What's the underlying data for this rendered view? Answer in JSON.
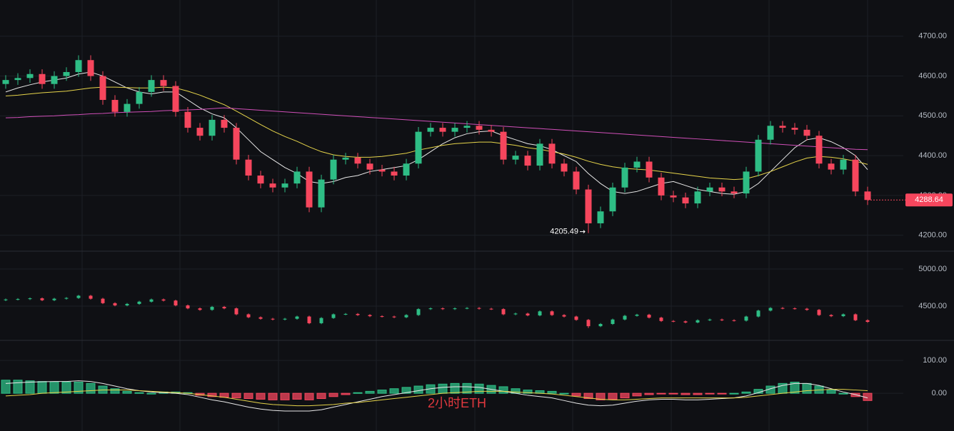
{
  "chart_data": [
    {
      "type": "candlestick",
      "up_color": "#2ebd85",
      "down_color": "#f6465d",
      "open": [
        4580,
        4590,
        4595,
        4605,
        4580,
        4600,
        4610,
        4640,
        4600,
        4540,
        4510,
        4530,
        4560,
        4590,
        4575,
        4510,
        4470,
        4450,
        4490,
        4470,
        4390,
        4350,
        4330,
        4320,
        4330,
        4360,
        4270,
        4340,
        4390,
        4395,
        4380,
        4365,
        4360,
        4350,
        4380,
        4460,
        4470,
        4460,
        4470,
        4475,
        4465,
        4460,
        4390,
        4400,
        4375,
        4430,
        4380,
        4360,
        4315,
        4230,
        4260,
        4320,
        4370,
        4385,
        4345,
        4300,
        4295,
        4280,
        4310,
        4320,
        4310,
        4305,
        4360,
        4440,
        4475,
        4470,
        4465,
        4450,
        4380,
        4365,
        4390,
        4310
      ],
      "high": [
        4602,
        4607,
        4617,
        4617,
        4612,
        4622,
        4652,
        4652,
        4612,
        4552,
        4542,
        4572,
        4602,
        4602,
        4587,
        4522,
        4482,
        4502,
        4502,
        4482,
        4402,
        4362,
        4342,
        4342,
        4372,
        4372,
        4352,
        4402,
        4407,
        4407,
        4392,
        4377,
        4372,
        4392,
        4472,
        4482,
        4482,
        4482,
        4487,
        4487,
        4477,
        4472,
        4412,
        4412,
        4442,
        4442,
        4392,
        4372,
        4327,
        4272,
        4332,
        4382,
        4397,
        4397,
        4357,
        4312,
        4307,
        4322,
        4332,
        4332,
        4322,
        4372,
        4452,
        4487,
        4487,
        4482,
        4477,
        4462,
        4392,
        4402,
        4402,
        4322
      ],
      "low": [
        4568,
        4578,
        4583,
        4568,
        4568,
        4588,
        4598,
        4588,
        4528,
        4498,
        4498,
        4518,
        4548,
        4563,
        4498,
        4458,
        4438,
        4438,
        4458,
        4378,
        4338,
        4318,
        4308,
        4308,
        4318,
        4258,
        4258,
        4328,
        4378,
        4368,
        4353,
        4348,
        4338,
        4338,
        4368,
        4448,
        4448,
        4448,
        4458,
        4453,
        4448,
        4378,
        4378,
        4363,
        4363,
        4368,
        4348,
        4303,
        4205.49,
        4218,
        4248,
        4308,
        4358,
        4333,
        4288,
        4283,
        4268,
        4268,
        4298,
        4298,
        4293,
        4293,
        4348,
        4428,
        4458,
        4453,
        4438,
        4368,
        4353,
        4353,
        4298,
        4276
      ],
      "close": [
        4590,
        4595,
        4605,
        4580,
        4600,
        4610,
        4640,
        4600,
        4540,
        4510,
        4530,
        4560,
        4590,
        4575,
        4510,
        4470,
        4450,
        4490,
        4470,
        4390,
        4350,
        4330,
        4320,
        4330,
        4360,
        4270,
        4340,
        4390,
        4395,
        4380,
        4365,
        4360,
        4350,
        4380,
        4460,
        4470,
        4460,
        4470,
        4475,
        4465,
        4460,
        4390,
        4400,
        4375,
        4430,
        4380,
        4360,
        4315,
        4230,
        4260,
        4320,
        4370,
        4385,
        4345,
        4300,
        4295,
        4280,
        4310,
        4320,
        4310,
        4305,
        4360,
        4440,
        4475,
        4470,
        4465,
        4450,
        4380,
        4365,
        4390,
        4310,
        4288.64
      ],
      "series": [
        {
          "color": "#e8e8e8",
          "values": [
            4560,
            4570,
            4578,
            4585,
            4590,
            4595,
            4605,
            4610,
            4600,
            4585,
            4570,
            4560,
            4555,
            4560,
            4560,
            4540,
            4520,
            4505,
            4495,
            4470,
            4440,
            4410,
            4390,
            4370,
            4355,
            4335,
            4330,
            4335,
            4345,
            4350,
            4360,
            4365,
            4370,
            4375,
            4390,
            4410,
            4430,
            4445,
            4455,
            4460,
            4462,
            4450,
            4440,
            4430,
            4425,
            4415,
            4400,
            4385,
            4355,
            4330,
            4310,
            4305,
            4310,
            4320,
            4330,
            4335,
            4325,
            4315,
            4310,
            4305,
            4303,
            4310,
            4330,
            4360,
            4390,
            4420,
            4440,
            4445,
            4435,
            4420,
            4400,
            4365
          ]
        },
        {
          "color": "#e6d44a",
          "values": [
            4550,
            4552,
            4555,
            4558,
            4560,
            4562,
            4566,
            4570,
            4572,
            4572,
            4571,
            4570,
            4570,
            4572,
            4570,
            4562,
            4552,
            4540,
            4528,
            4512,
            4495,
            4478,
            4462,
            4448,
            4436,
            4422,
            4410,
            4402,
            4398,
            4396,
            4396,
            4398,
            4402,
            4406,
            4414,
            4420,
            4426,
            4430,
            4432,
            4434,
            4434,
            4430,
            4426,
            4420,
            4416,
            4410,
            4404,
            4396,
            4386,
            4378,
            4372,
            4368,
            4366,
            4364,
            4360,
            4356,
            4352,
            4348,
            4344,
            4342,
            4340,
            4342,
            4350,
            4360,
            4372,
            4384,
            4394,
            4398,
            4396,
            4392,
            4386,
            4378
          ]
        },
        {
          "color": "#d04fb8",
          "values": [
            4495,
            4496,
            4498,
            4499,
            4500,
            4502,
            4503,
            4505,
            4506,
            4508,
            4509,
            4510,
            4511,
            4513,
            4514,
            4515,
            4516,
            4518,
            4520,
            4518,
            4516,
            4514,
            4512,
            4510,
            4508,
            4506,
            4504,
            4502,
            4500,
            4498,
            4496,
            4494,
            4492,
            4490,
            4488,
            4486,
            4484,
            4482,
            4480,
            4478,
            4476,
            4474,
            4472,
            4470,
            4468,
            4466,
            4464,
            4462,
            4460,
            4458,
            4456,
            4454,
            4452,
            4450,
            4448,
            4446,
            4444,
            4442,
            4440,
            4438,
            4436,
            4434,
            4432,
            4430,
            4428,
            4426,
            4424,
            4422,
            4420,
            4418,
            4416,
            4415
          ]
        }
      ],
      "ylim": [
        4160,
        4791
      ],
      "yticks": [
        {
          "value": 4200,
          "label": "4200.00"
        },
        {
          "value": 4300,
          "label": "4300.00"
        },
        {
          "value": 4400,
          "label": "4400.00"
        },
        {
          "value": 4500,
          "label": "4500.00"
        },
        {
          "value": 4600,
          "label": "4600.00"
        },
        {
          "value": 4700,
          "label": "4700.00"
        }
      ],
      "y2lim": [
        4039,
        5240
      ],
      "y2ticks": [
        {
          "value": 4500,
          "label": "4500.00"
        },
        {
          "value": 5000,
          "label": "5000.00"
        }
      ],
      "grid": true
    },
    {
      "type": "macd",
      "watermark": "2小时ETH",
      "values": [
        40,
        40,
        38,
        36,
        35,
        34,
        34,
        30,
        22,
        14,
        6,
        2,
        0,
        4,
        4,
        2,
        -6,
        -10,
        -12,
        -14,
        -16,
        -18,
        -20,
        -20,
        -18,
        -20,
        -16,
        -10,
        -4,
        2,
        6,
        10,
        14,
        18,
        22,
        26,
        28,
        30,
        30,
        28,
        24,
        20,
        14,
        10,
        8,
        6,
        0,
        -8,
        -16,
        -20,
        -18,
        -14,
        -8,
        -4,
        -2,
        -2,
        -4,
        -4,
        -2,
        -2,
        0,
        4,
        12,
        22,
        30,
        34,
        30,
        22,
        10,
        0,
        -10,
        -22
      ],
      "up_color": "#2ebd85",
      "down_color": "#f6465d",
      "series": [
        {
          "color": "#e8e8e8",
          "values": [
            30,
            32,
            34,
            35,
            36,
            36,
            38,
            36,
            30,
            22,
            14,
            8,
            4,
            2,
            0,
            -4,
            -12,
            -20,
            -26,
            -34,
            -42,
            -48,
            -52,
            -54,
            -54,
            -54,
            -50,
            -42,
            -34,
            -26,
            -18,
            -10,
            -4,
            2,
            8,
            14,
            18,
            20,
            20,
            18,
            12,
            6,
            0,
            -6,
            -10,
            -14,
            -22,
            -30,
            -36,
            -38,
            -36,
            -30,
            -24,
            -20,
            -18,
            -18,
            -20,
            -20,
            -18,
            -16,
            -14,
            -8,
            2,
            14,
            24,
            30,
            30,
            24,
            14,
            4,
            -4,
            -14
          ]
        },
        {
          "color": "#e6d44a",
          "values": [
            -8,
            -6,
            -4,
            0,
            2,
            4,
            6,
            8,
            10,
            10,
            10,
            8,
            6,
            4,
            2,
            0,
            -4,
            -8,
            -12,
            -18,
            -24,
            -30,
            -34,
            -36,
            -38,
            -38,
            -36,
            -34,
            -30,
            -28,
            -24,
            -20,
            -16,
            -12,
            -8,
            -4,
            0,
            2,
            4,
            6,
            6,
            6,
            4,
            2,
            0,
            -2,
            -6,
            -10,
            -14,
            -18,
            -20,
            -20,
            -18,
            -16,
            -14,
            -14,
            -14,
            -14,
            -14,
            -14,
            -14,
            -12,
            -8,
            -4,
            0,
            4,
            8,
            10,
            12,
            12,
            10,
            8
          ]
        }
      ],
      "ylim": [
        -106,
        161
      ],
      "yticks": [
        {
          "value": 0,
          "label": "0.00"
        },
        {
          "value": 100,
          "label": "100.00"
        }
      ],
      "grid": true
    }
  ]
}
